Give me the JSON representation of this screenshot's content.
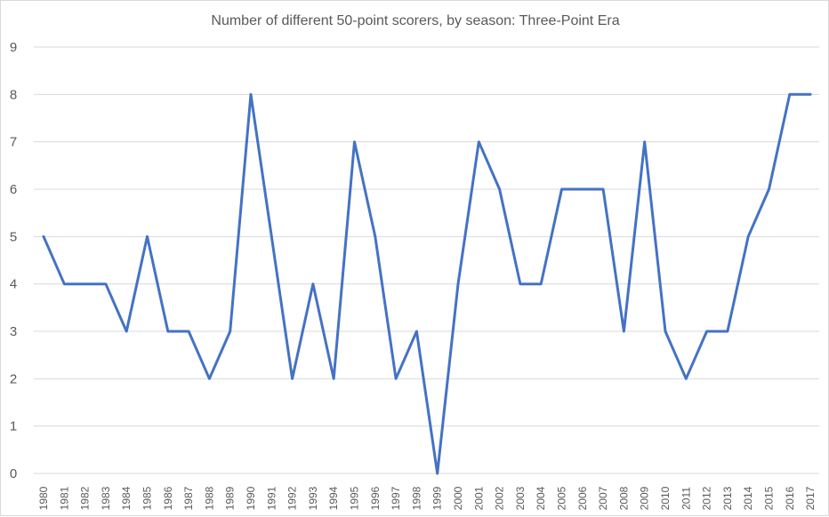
{
  "chart_data": {
    "type": "line",
    "title": "Number of different 50-point scorers, by season: Three-Point Era",
    "xlabel": "",
    "ylabel": "",
    "ylim": [
      0,
      9
    ],
    "yticks": [
      "0",
      "1",
      "2",
      "3",
      "4",
      "5",
      "6",
      "7",
      "8",
      "9"
    ],
    "grid": true,
    "legend": "none",
    "line_color": "#4472c4",
    "categories": [
      "1980",
      "1981",
      "1982",
      "1983",
      "1984",
      "1985",
      "1986",
      "1987",
      "1988",
      "1989",
      "1990",
      "1991",
      "1992",
      "1993",
      "1994",
      "1995",
      "1996",
      "1997",
      "1998",
      "1999",
      "2000",
      "2001",
      "2002",
      "2003",
      "2004",
      "2005",
      "2006",
      "2007",
      "2008",
      "2009",
      "2010",
      "2011",
      "2012",
      "2013",
      "2014",
      "2015",
      "2016",
      "2017"
    ],
    "values": [
      5,
      4,
      4,
      4,
      3,
      5,
      3,
      3,
      2,
      3,
      8,
      5,
      2,
      4,
      2,
      7,
      5,
      2,
      3,
      0,
      4,
      7,
      6,
      4,
      4,
      6,
      6,
      6,
      3,
      7,
      3,
      2,
      3,
      3,
      5,
      6,
      8,
      8
    ]
  }
}
